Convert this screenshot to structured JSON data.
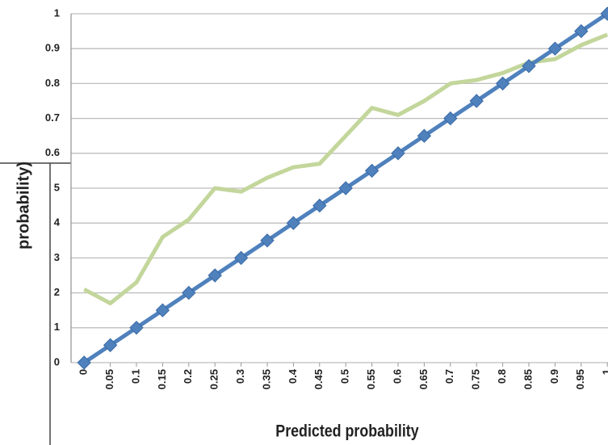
{
  "chart_data": {
    "type": "line",
    "x_label": "Predicted probability",
    "y_label": "probability)",
    "x": [
      0,
      0.05,
      0.1,
      0.15,
      0.2,
      0.25,
      0.3,
      0.35,
      0.4,
      0.45,
      0.5,
      0.55,
      0.6,
      0.65,
      0.7,
      0.75,
      0.8,
      0.85,
      0.9,
      0.95,
      1
    ],
    "series": [
      {
        "color": "#c3d69b",
        "markers": false,
        "values": [
          0.21,
          0.17,
          0.23,
          0.36,
          0.41,
          0.5,
          0.49,
          0.53,
          0.56,
          0.57,
          0.65,
          0.73,
          0.71,
          0.75,
          0.8,
          0.81,
          0.83,
          0.86,
          0.87,
          0.91,
          0.94
        ]
      },
      {
        "color": "#4f81bd",
        "markers": true,
        "values": [
          0,
          0.05,
          0.1,
          0.15,
          0.2,
          0.25,
          0.3,
          0.35,
          0.4,
          0.45,
          0.5,
          0.55,
          0.6,
          0.65,
          0.7,
          0.75,
          0.8,
          0.85,
          0.9,
          0.95,
          1
        ]
      }
    ],
    "xlim": [
      -0.025,
      1.025
    ],
    "xticks": [
      0,
      0.05,
      0.1,
      0.15,
      0.2,
      0.25,
      0.3,
      0.35,
      0.4,
      0.45,
      0.5,
      0.55,
      0.6,
      0.65,
      0.7,
      0.75,
      0.8,
      0.85,
      0.9,
      0.95,
      1
    ],
    "ylim": [
      0,
      1
    ],
    "yticks": [
      0,
      {
        "value": 0.1,
        "label": "1"
      },
      {
        "value": 0.2,
        "label": "2"
      },
      {
        "value": 0.3,
        "label": "3"
      },
      {
        "value": 0.4,
        "label": "4"
      },
      {
        "value": 0.5,
        "label": "5"
      },
      0.6,
      0.7,
      0.8,
      0.9,
      1
    ],
    "grid": true
  }
}
